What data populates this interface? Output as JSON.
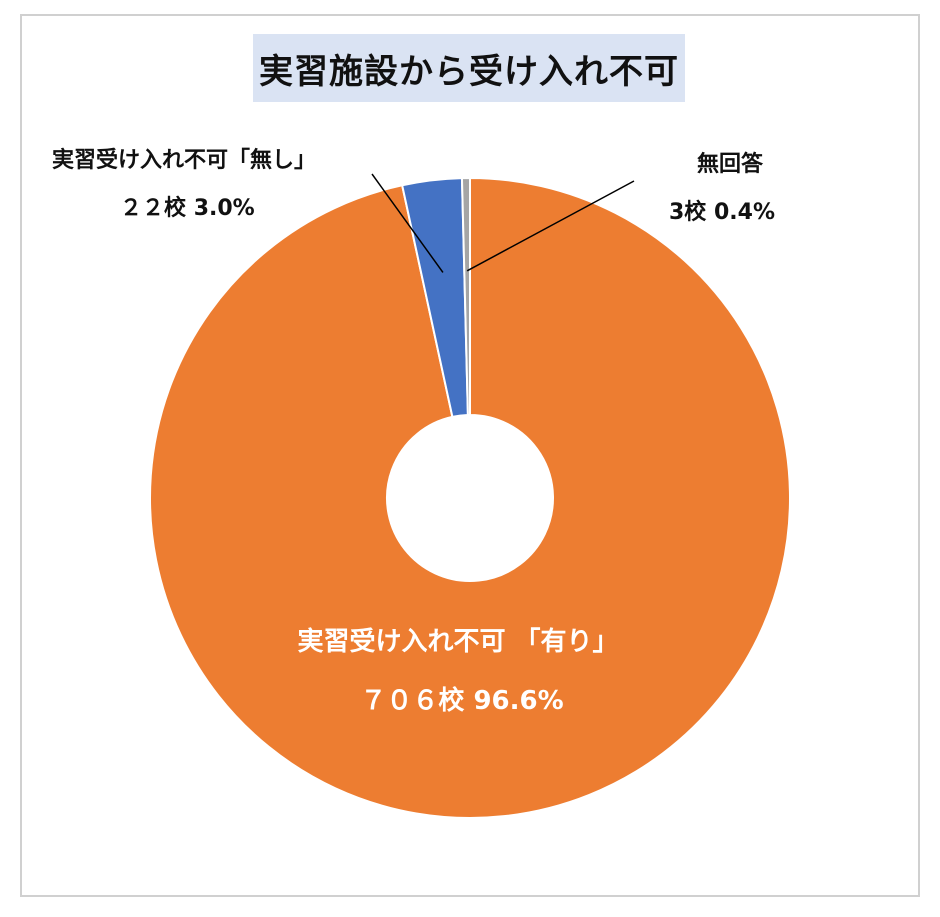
{
  "chart_data": {
    "type": "pie",
    "donut": true,
    "title": "実習施設から受け入れ不可",
    "slices": [
      {
        "key": "none",
        "label": "実習受け入れ不可「無し」",
        "count_label": "２２校",
        "percent_label": "3.0%",
        "value": 3.0,
        "color": "#4472c4"
      },
      {
        "key": "na",
        "label": "無回答",
        "count_label": "3校",
        "percent_label": "0.4%",
        "value": 0.4,
        "color": "#a5a5a5"
      },
      {
        "key": "yes",
        "label": "実習受け入れ不可 「有り」",
        "count_label": "７０６校",
        "percent_label": "96.6%",
        "value": 96.6,
        "color": "#ed7d31"
      }
    ]
  }
}
